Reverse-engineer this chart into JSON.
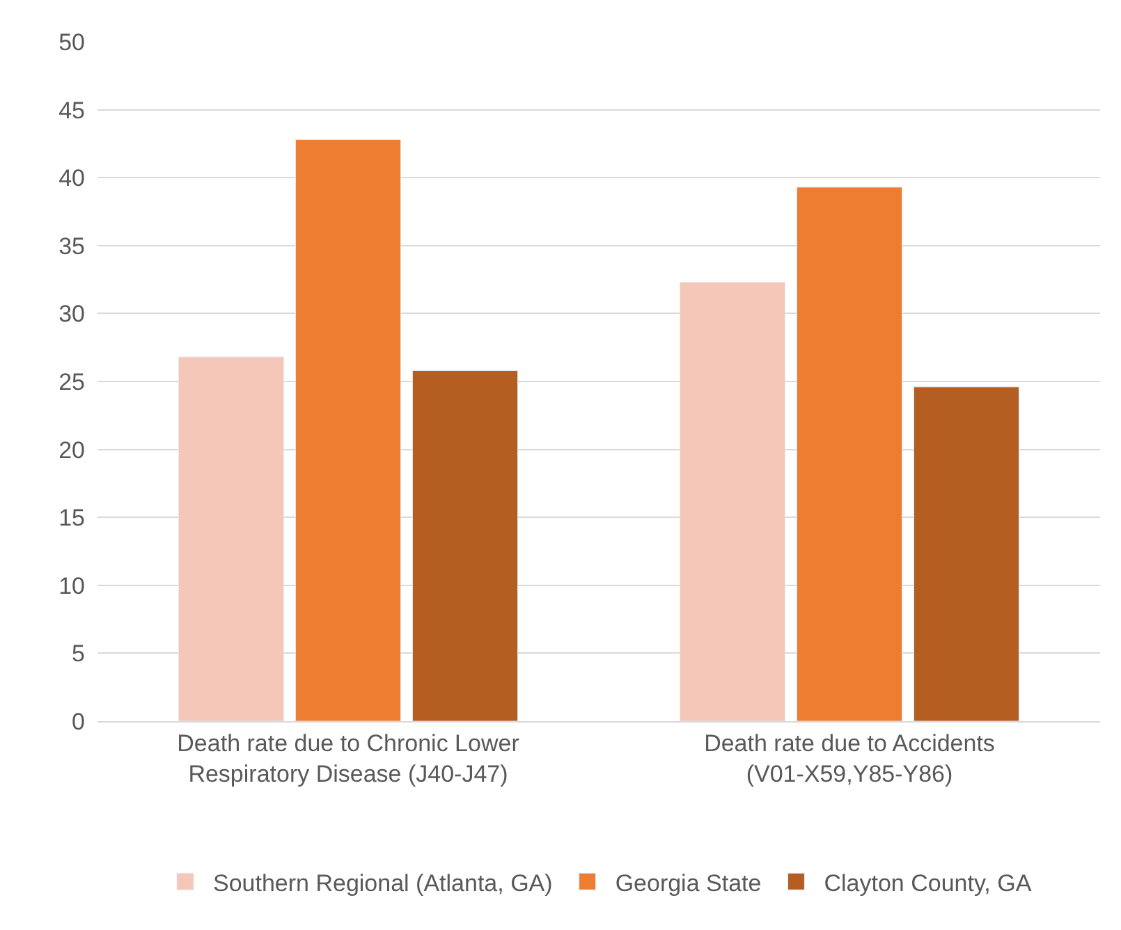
{
  "chart_data": {
    "type": "bar",
    "categories": [
      "Death rate due to Chronic Lower Respiratory Disease (J40-J47)",
      "Death rate due to Accidents (V01-X59,Y85-Y86)"
    ],
    "series": [
      {
        "name": "Southern Regional (Atlanta, GA)",
        "color": "#f4c7b8",
        "values": [
          26.8,
          32.3
        ]
      },
      {
        "name": "Georgia State",
        "color": "#ed7d31",
        "values": [
          42.8,
          39.3
        ]
      },
      {
        "name": "Clayton County, GA",
        "color": "#b45e22",
        "values": [
          25.8,
          24.6
        ]
      }
    ],
    "ylim": [
      0,
      50
    ],
    "yticks": [
      0,
      5,
      10,
      15,
      20,
      25,
      30,
      35,
      40,
      45,
      50
    ],
    "grid": "y",
    "legend": "bottom"
  }
}
